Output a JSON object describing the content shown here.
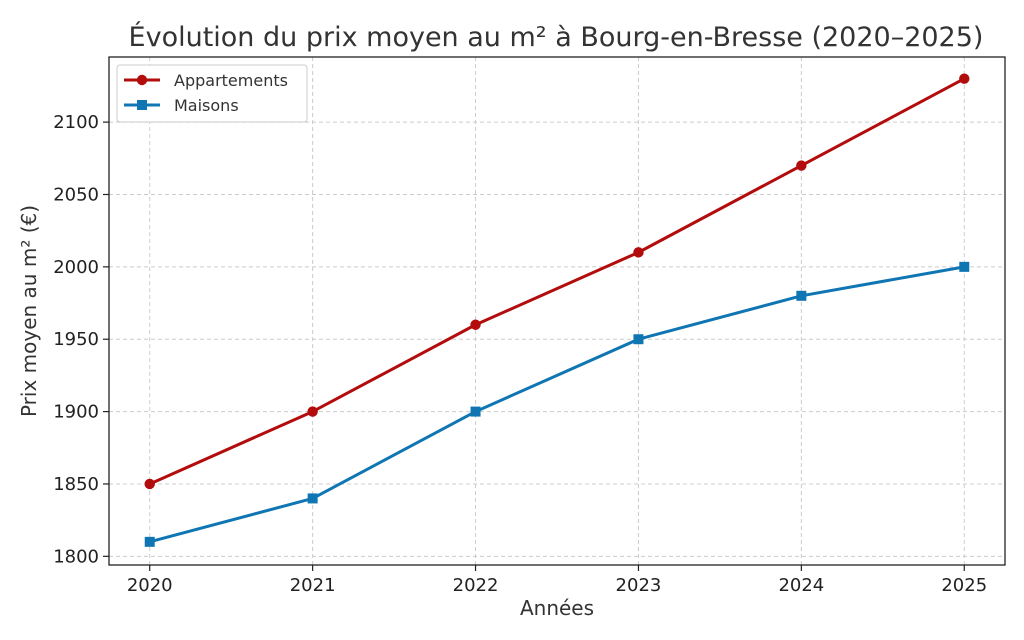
{
  "chart_data": {
    "type": "line",
    "title": "Évolution du prix moyen au m² à Bourg-en-Bresse (2020–2025)",
    "xlabel": "Années",
    "ylabel": "Prix moyen au m² (€)",
    "x": [
      2020,
      2021,
      2022,
      2023,
      2024,
      2025
    ],
    "x_tick_labels": [
      "2020",
      "2021",
      "2022",
      "2023",
      "2024",
      "2025"
    ],
    "y_tick_values": [
      1800,
      1850,
      1900,
      1950,
      2000,
      2050,
      2100
    ],
    "y_tick_labels": [
      "1800",
      "1850",
      "1900",
      "1950",
      "2000",
      "2050",
      "2100"
    ],
    "xlim": [
      2019.75,
      2025.25
    ],
    "ylim": [
      1794,
      2145
    ],
    "grid": true,
    "legend_position": "top-left",
    "series": [
      {
        "name": "Appartements",
        "color": "#b30c0c",
        "marker": "circle",
        "values": [
          1850,
          1900,
          1960,
          2010,
          2070,
          2130
        ]
      },
      {
        "name": "Maisons",
        "color": "#0f76b3",
        "marker": "square",
        "values": [
          1810,
          1840,
          1900,
          1950,
          1980,
          2000
        ]
      }
    ]
  }
}
